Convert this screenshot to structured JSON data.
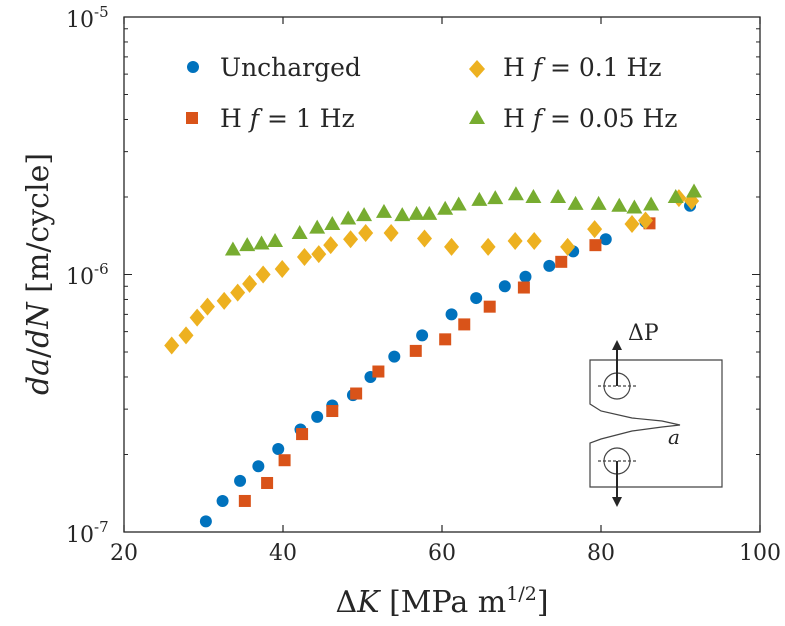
{
  "chart_data": {
    "type": "scatter",
    "xlabel": "ΔK [MPa m1/2]",
    "ylabel": "da/dN  [m/cycle]",
    "xlim": [
      20,
      100
    ],
    "ylim": [
      1e-07,
      1e-05
    ],
    "y_scale": "log",
    "x_ticks": [
      "20",
      "40",
      "60",
      "80",
      "100"
    ],
    "y_ticks": [
      {
        "base": "10",
        "exp": "-7"
      },
      {
        "base": "10",
        "exp": "-6"
      },
      {
        "base": "10",
        "exp": "-5"
      }
    ],
    "legend_position": "top",
    "series": [
      {
        "name": "Uncharged",
        "marker": "circle",
        "color": "#0072BD",
        "x": [
          30.3,
          32.4,
          34.6,
          36.9,
          39.4,
          42.2,
          44.3,
          46.2,
          48.8,
          51.0,
          54.0,
          57.5,
          61.2,
          64.3,
          67.9,
          70.5,
          73.5,
          76.5,
          80.6,
          85.6,
          91.2
        ],
        "y": [
          1.1e-07,
          1.32e-07,
          1.58e-07,
          1.8e-07,
          2.1e-07,
          2.5e-07,
          2.8e-07,
          3.1e-07,
          3.4e-07,
          4e-07,
          4.8e-07,
          5.8e-07,
          7e-07,
          8.1e-07,
          9e-07,
          9.8e-07,
          1.08e-06,
          1.23e-06,
          1.37e-06,
          1.6e-06,
          1.85e-06
        ]
      },
      {
        "name": "H f = 1 Hz",
        "marker": "square",
        "color": "#D95319",
        "x": [
          35.2,
          38.0,
          40.2,
          42.4,
          46.2,
          49.2,
          52.0,
          56.7,
          60.4,
          62.8,
          66.0,
          70.3,
          75.0,
          79.3,
          86.1
        ],
        "y": [
          1.32e-07,
          1.55e-07,
          1.9e-07,
          2.4e-07,
          2.95e-07,
          3.45e-07,
          4.2e-07,
          5.05e-07,
          5.6e-07,
          6.4e-07,
          7.5e-07,
          8.9e-07,
          1.12e-06,
          1.3e-06,
          1.58e-06
        ]
      },
      {
        "name": "H f = 0.1 Hz",
        "marker": "diamond",
        "color": "#EDB120",
        "x": [
          26.0,
          27.8,
          29.2,
          30.5,
          32.6,
          34.3,
          35.8,
          37.5,
          39.9,
          42.7,
          44.5,
          46.0,
          48.5,
          50.4,
          53.6,
          57.8,
          61.2,
          65.8,
          69.2,
          71.6,
          75.8,
          79.2,
          83.9,
          85.6,
          89.8,
          91.4
        ],
        "y": [
          5.3e-07,
          5.8e-07,
          6.8e-07,
          7.5e-07,
          7.9e-07,
          8.5e-07,
          9.2e-07,
          1e-06,
          1.05e-06,
          1.17e-06,
          1.2e-06,
          1.3e-06,
          1.37e-06,
          1.45e-06,
          1.45e-06,
          1.38e-06,
          1.28e-06,
          1.28e-06,
          1.35e-06,
          1.35e-06,
          1.28e-06,
          1.5e-06,
          1.57e-06,
          1.62e-06,
          1.98e-06,
          1.93e-06
        ]
      },
      {
        "name": "H f = 0.05 Hz",
        "marker": "triangle",
        "color": "#77AC30",
        "x": [
          33.7,
          35.5,
          37.3,
          39.0,
          42.1,
          44.3,
          46.2,
          48.2,
          50.2,
          52.7,
          55.0,
          56.8,
          58.4,
          60.4,
          62.1,
          64.7,
          66.7,
          69.3,
          71.5,
          74.6,
          76.8,
          79.7,
          82.3,
          84.2,
          86.3,
          89.4,
          91.7
        ],
        "y": [
          1.25e-06,
          1.3e-06,
          1.32e-06,
          1.35e-06,
          1.45e-06,
          1.52e-06,
          1.57e-06,
          1.65e-06,
          1.7e-06,
          1.75e-06,
          1.7e-06,
          1.72e-06,
          1.72e-06,
          1.8e-06,
          1.87e-06,
          1.95e-06,
          1.98e-06,
          2.05e-06,
          2e-06,
          2e-06,
          1.88e-06,
          1.88e-06,
          1.85e-06,
          1.82e-06,
          1.87e-06,
          2e-06,
          2.1e-06
        ]
      }
    ],
    "legend": [
      {
        "prefix": "Uncharged",
        "var": "",
        "suffix": ""
      },
      {
        "prefix": "H ",
        "var": "f",
        "suffix": " = 1 Hz"
      },
      {
        "prefix": "H ",
        "var": "f",
        "suffix": " = 0.1 Hz"
      },
      {
        "prefix": "H ",
        "var": "f",
        "suffix": " = 0.05 Hz"
      }
    ],
    "inset": {
      "load_label": "ΔP",
      "crack_label": "a"
    }
  }
}
